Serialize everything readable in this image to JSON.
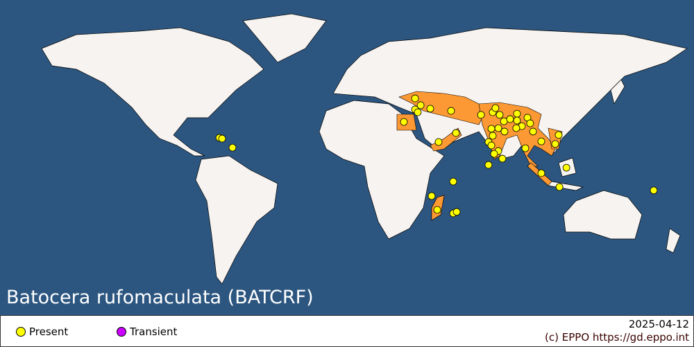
{
  "title": "Batocera rufomaculata (BATCRF)",
  "colors": {
    "ocean": "#2c5680",
    "land": "#f6f3f0",
    "present_region": "#fd9934",
    "present_point": "#ffff00",
    "transient_point": "#cc00ff"
  },
  "legend": [
    {
      "label": "Present",
      "color": "#ffff00"
    },
    {
      "label": "Transient",
      "color": "#cc00ff"
    }
  ],
  "date": "2025-04-12",
  "copyright": "(c) EPPO https://gd.eppo.int",
  "present_regions": [
    "Egypt",
    "Turkey",
    "Syria",
    "Lebanon",
    "Israel",
    "Jordan",
    "Iraq",
    "Iran",
    "Afghanistan",
    "Pakistan",
    "India",
    "Nepal",
    "Bangladesh",
    "Myanmar",
    "Thailand",
    "Malaysia",
    "Vietnam",
    "Yemen",
    "Oman",
    "Madagascar",
    "Indonesia"
  ],
  "present_points": [
    [
      -66.2,
      15.2
    ],
    [
      -64.8,
      14.8
    ],
    [
      -59.4,
      10.3
    ],
    [
      35.3,
      34.8
    ],
    [
      38.2,
      31.4
    ],
    [
      35.3,
      29.3
    ],
    [
      36.7,
      27.9
    ],
    [
      43.2,
      29.7
    ],
    [
      54,
      28.6
    ],
    [
      29.5,
      23.1
    ],
    [
      56.5,
      17.6
    ],
    [
      47.5,
      13.1
    ],
    [
      69.5,
      26.6
    ],
    [
      75.6,
      27.9
    ],
    [
      77,
      30
    ],
    [
      79.2,
      26.6
    ],
    [
      81.4,
      23.4
    ],
    [
      84.6,
      24.5
    ],
    [
      88.2,
      27.2
    ],
    [
      88.2,
      23.8
    ],
    [
      93.6,
      25.2
    ],
    [
      95,
      22.4
    ],
    [
      90.7,
      21
    ],
    [
      87.8,
      20
    ],
    [
      78.5,
      20
    ],
    [
      81.7,
      18.3
    ],
    [
      74.9,
      19.7
    ],
    [
      75.6,
      16.2
    ],
    [
      73.4,
      13.1
    ],
    [
      74.9,
      11.4
    ],
    [
      78.5,
      8.6
    ],
    [
      76.3,
      7.2
    ],
    [
      80.6,
      4.8
    ],
    [
      73.4,
      1.7
    ],
    [
      92.5,
      10
    ],
    [
      96.5,
      18.3
    ],
    [
      100.8,
      13.4
    ],
    [
      108,
      12.1
    ],
    [
      109.8,
      16.6
    ],
    [
      100.8,
      -2.4
    ],
    [
      113.8,
      0.3
    ],
    [
      110.2,
      -9.3
    ],
    [
      55.1,
      -6.6
    ],
    [
      43.9,
      -13.8
    ],
    [
      46.8,
      -20.7
    ],
    [
      55.1,
      -22.4
    ],
    [
      56.9,
      -21.7
    ],
    [
      159.1,
      -11
    ]
  ]
}
